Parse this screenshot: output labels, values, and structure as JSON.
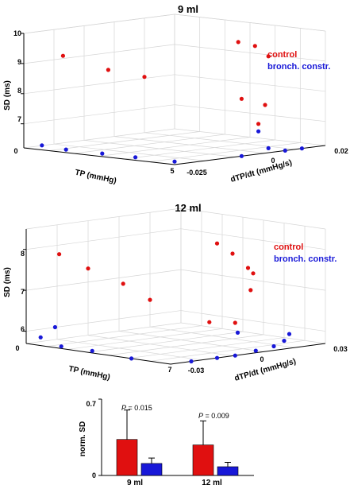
{
  "colors": {
    "control": "#e01010",
    "bronch": "#1818d8"
  },
  "chart_data": [
    {
      "type": "scatter",
      "title": "9 ml",
      "zlabel": "SD (ms)",
      "xlabel": "TP (mmHg)",
      "ylabel": "dTP/dt (mmHg/s)",
      "z_ticks": [
        "7",
        "8",
        "9",
        "10"
      ],
      "x_ticks": [
        "0",
        "5"
      ],
      "y_ticks": [
        "-0.025",
        "0",
        "0.02"
      ],
      "legend": [
        "control",
        "bronch. constr."
      ],
      "legend_position": "right",
      "grid": true,
      "series": [
        {
          "name": "control",
          "points": [
            {
              "x": 1.3,
              "y": -0.025,
              "z": 9.4
            },
            {
              "x": 2.8,
              "y": -0.025,
              "z": 9.1
            },
            {
              "x": 4.0,
              "y": -0.025,
              "z": 9.0
            },
            {
              "x": 5.0,
              "y": -0.006,
              "z": 10.0
            },
            {
              "x": 5.0,
              "y": -0.001,
              "z": 9.8
            },
            {
              "x": 5.0,
              "y": 0.003,
              "z": 9.4
            },
            {
              "x": 5.0,
              "y": -0.005,
              "z": 8.1
            },
            {
              "x": 5.0,
              "y": 0.002,
              "z": 7.8
            },
            {
              "x": 5.0,
              "y": 0.0,
              "z": 7.2
            }
          ]
        },
        {
          "name": "bronch. constr.",
          "points": [
            {
              "x": 0.6,
              "y": -0.025,
              "z": 6.35
            },
            {
              "x": 1.4,
              "y": -0.025,
              "z": 6.3
            },
            {
              "x": 2.6,
              "y": -0.025,
              "z": 6.3
            },
            {
              "x": 3.7,
              "y": -0.025,
              "z": 6.3
            },
            {
              "x": 5.0,
              "y": -0.025,
              "z": 6.3
            },
            {
              "x": 5.0,
              "y": -0.005,
              "z": 6.2
            },
            {
              "x": 5.0,
              "y": 0.003,
              "z": 6.35
            },
            {
              "x": 5.0,
              "y": 0.008,
              "z": 6.2
            },
            {
              "x": 5.0,
              "y": 0.013,
              "z": 6.2
            },
            {
              "x": 5.0,
              "y": 0.0,
              "z": 6.95
            }
          ]
        }
      ]
    },
    {
      "type": "scatter",
      "title": "12 ml",
      "zlabel": "SD (ms)",
      "xlabel": "TP (mmHg)",
      "ylabel": "dTP/dt (mmHg/s)",
      "z_ticks": [
        "6",
        "7",
        "8"
      ],
      "x_ticks": [
        "0",
        "7"
      ],
      "y_ticks": [
        "-0.03",
        "0",
        "0.03"
      ],
      "legend": [
        "control",
        "bronch. constr."
      ],
      "legend_position": "right",
      "grid": true,
      "series": [
        {
          "name": "control",
          "points": [
            {
              "x": 1.6,
              "y": -0.03,
              "z": 8.0
            },
            {
              "x": 3.0,
              "y": -0.03,
              "z": 7.75
            },
            {
              "x": 4.7,
              "y": -0.03,
              "z": 7.5
            },
            {
              "x": 6.0,
              "y": -0.03,
              "z": 7.2
            },
            {
              "x": 7.0,
              "y": -0.012,
              "z": 8.5
            },
            {
              "x": 7.0,
              "y": -0.006,
              "z": 8.2
            },
            {
              "x": 7.0,
              "y": 0.0,
              "z": 7.8
            },
            {
              "x": 7.0,
              "y": 0.002,
              "z": 7.65
            },
            {
              "x": 7.0,
              "y": 0.001,
              "z": 7.25
            },
            {
              "x": 7.0,
              "y": -0.015,
              "z": 6.6
            },
            {
              "x": 7.0,
              "y": -0.005,
              "z": 6.5
            }
          ]
        },
        {
          "name": "bronch. constr.",
          "points": [
            {
              "x": 0.7,
              "y": -0.03,
              "z": 5.9
            },
            {
              "x": 1.7,
              "y": -0.03,
              "z": 5.75
            },
            {
              "x": 1.4,
              "y": -0.03,
              "z": 6.2
            },
            {
              "x": 3.2,
              "y": -0.03,
              "z": 5.75
            },
            {
              "x": 5.1,
              "y": -0.03,
              "z": 5.7
            },
            {
              "x": 7.0,
              "y": -0.022,
              "z": 5.7
            },
            {
              "x": 7.0,
              "y": -0.012,
              "z": 5.7
            },
            {
              "x": 7.0,
              "y": -0.005,
              "z": 5.7
            },
            {
              "x": 7.0,
              "y": 0.003,
              "z": 5.75
            },
            {
              "x": 7.0,
              "y": 0.01,
              "z": 5.8
            },
            {
              "x": 7.0,
              "y": 0.014,
              "z": 5.9
            },
            {
              "x": 7.0,
              "y": 0.016,
              "z": 6.05
            },
            {
              "x": 7.0,
              "y": -0.004,
              "z": 6.25
            }
          ]
        }
      ]
    },
    {
      "type": "bar",
      "ylabel": "norm. SD",
      "categories": [
        "9 ml",
        "12 ml"
      ],
      "ylim": [
        0,
        0.7
      ],
      "y_ticks": [
        "0",
        "0.7"
      ],
      "series": [
        {
          "name": "control",
          "values": [
            0.33,
            0.28
          ],
          "errors": [
            0.27,
            0.22
          ]
        },
        {
          "name": "bronch. constr.",
          "values": [
            0.11,
            0.08
          ],
          "errors": [
            0.05,
            0.04
          ]
        }
      ],
      "annotations": [
        {
          "category": "9 ml",
          "label": "P",
          "value": " = 0.015"
        },
        {
          "category": "12 ml",
          "label": "P",
          "value": " = 0.009"
        }
      ]
    }
  ]
}
